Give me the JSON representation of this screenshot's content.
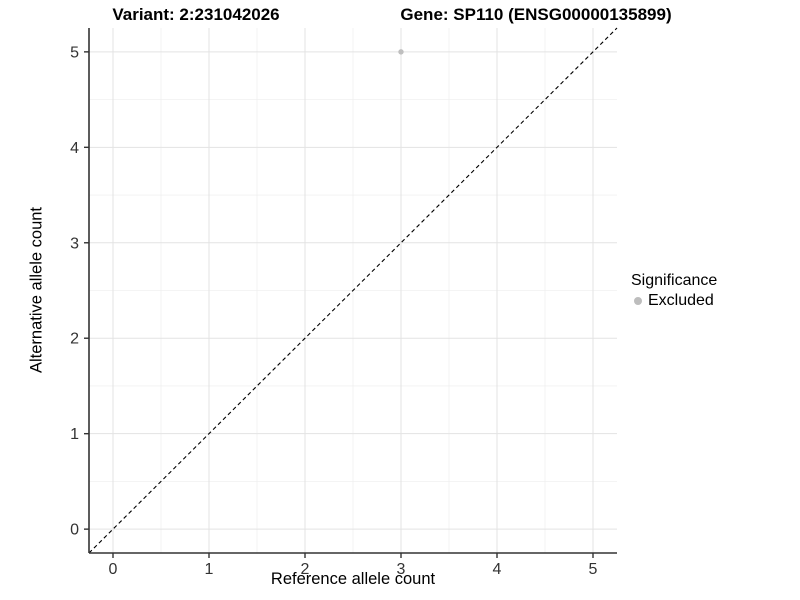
{
  "header": {
    "variant_title": "Variant: 2:231042026",
    "gene_title": "Gene: SP110 (ENSG00000135899)"
  },
  "chart_data": {
    "type": "scatter",
    "title": "Variant: 2:231042026  /  Gene: SP110 (ENSG00000135899)",
    "xlabel": "Reference allele count",
    "ylabel": "Alternative allele count",
    "xlim": [
      -0.25,
      5.25
    ],
    "ylim": [
      -0.25,
      5.25
    ],
    "x_ticks": [
      0,
      1,
      2,
      3,
      4,
      5
    ],
    "y_ticks": [
      0,
      1,
      2,
      3,
      4,
      5
    ],
    "grid": "major+minor",
    "points": [
      {
        "x": 3,
        "y": 5,
        "series": "Excluded"
      }
    ],
    "reference_line": {
      "type": "identity",
      "slope": 1,
      "intercept": 0,
      "style": "dashed",
      "color": "#000000"
    },
    "legend": {
      "title": "Significance",
      "position": "right",
      "entries": [
        {
          "label": "Excluded",
          "color": "#bdbdbd"
        }
      ]
    },
    "colors": {
      "Excluded": "#bfbfbf",
      "grid_major": "#e3e3e3",
      "grid_minor": "#f0f0f0",
      "axis_line": "#333333",
      "tick_label": "#333333"
    }
  }
}
